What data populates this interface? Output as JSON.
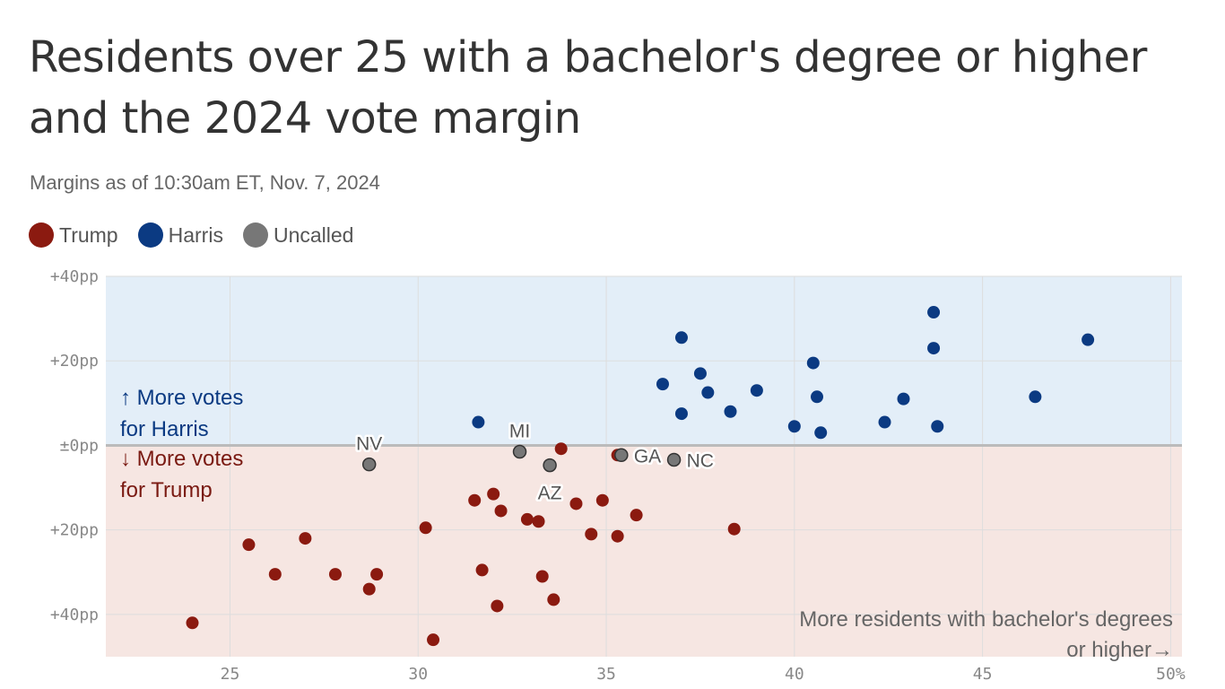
{
  "title": "Residents over 25 with a bachelor's degree or higher and the 2024 vote margin",
  "subtitle": "Margins as of 10:30am ET, Nov. 7, 2024",
  "legend": [
    {
      "label": "Trump",
      "color": "#8b1a10"
    },
    {
      "label": "Harris",
      "color": "#0b3a82"
    },
    {
      "label": "Uncalled",
      "color": "#777777"
    }
  ],
  "chart_data": {
    "type": "scatter",
    "xlabel": "More residents with bachelor's degrees or higher→",
    "xlim": [
      21.7,
      50.3
    ],
    "ylim": [
      -50,
      40
    ],
    "x_ticks": [
      25,
      30,
      35,
      40,
      45,
      50
    ],
    "x_tick_labels": [
      "25",
      "30",
      "35",
      "40",
      "45",
      "50%"
    ],
    "y_ticks": [
      40,
      20,
      0,
      -20,
      -40
    ],
    "y_tick_labels": [
      "+40pp",
      "+20pp",
      "±0pp",
      "+20pp",
      "+40pp"
    ],
    "annotation_harris": [
      "↑ More votes",
      "for Harris"
    ],
    "annotation_trump": [
      "↓ More votes",
      "for Trump"
    ],
    "x_annotation": [
      "More residents with bachelor's degrees",
      "or higher→"
    ],
    "background_colors": {
      "harris_region": "#e3eef8",
      "trump_region": "#f6e6e2",
      "zero_line": "#bbbbbb",
      "grid": "#dddddd"
    },
    "series": [
      {
        "name": "Trump",
        "color": "#8b1a10",
        "points": [
          [
            24.0,
            -42
          ],
          [
            25.5,
            -23.5
          ],
          [
            26.2,
            -30.5
          ],
          [
            27.0,
            -22
          ],
          [
            27.8,
            -30.5
          ],
          [
            28.7,
            -34
          ],
          [
            28.9,
            -30.5
          ],
          [
            30.2,
            -19.5
          ],
          [
            30.4,
            -46
          ],
          [
            31.5,
            -13
          ],
          [
            31.7,
            -29.5
          ],
          [
            32.0,
            -11.5
          ],
          [
            32.1,
            -38
          ],
          [
            32.2,
            -15.5
          ],
          [
            32.9,
            -17.5
          ],
          [
            33.2,
            -18
          ],
          [
            33.3,
            -31
          ],
          [
            33.6,
            -36.5
          ],
          [
            33.8,
            -0.8
          ],
          [
            34.2,
            -13.8
          ],
          [
            34.6,
            -21
          ],
          [
            34.9,
            -13
          ],
          [
            35.3,
            -21.5
          ],
          [
            35.3,
            -2.3
          ],
          [
            35.8,
            -16.5
          ],
          [
            38.4,
            -19.8
          ]
        ]
      },
      {
        "name": "Harris",
        "color": "#0b3a82",
        "points": [
          [
            31.6,
            5.5
          ],
          [
            36.5,
            14.5
          ],
          [
            37.0,
            25.5
          ],
          [
            37.0,
            7.5
          ],
          [
            37.5,
            17
          ],
          [
            37.7,
            12.5
          ],
          [
            38.3,
            8
          ],
          [
            39.0,
            13
          ],
          [
            40.0,
            4.5
          ],
          [
            40.5,
            19.5
          ],
          [
            40.6,
            11.5
          ],
          [
            40.7,
            3
          ],
          [
            42.4,
            5.5
          ],
          [
            42.9,
            11
          ],
          [
            43.7,
            31.5
          ],
          [
            43.7,
            23
          ],
          [
            43.8,
            4.5
          ],
          [
            46.4,
            11.5
          ],
          [
            47.8,
            25
          ]
        ]
      },
      {
        "name": "Uncalled",
        "color": "#777777",
        "points": [
          [
            28.7,
            -4.5
          ],
          [
            32.7,
            -1.5
          ],
          [
            33.5,
            -4.7
          ],
          [
            35.4,
            -2.3
          ],
          [
            36.8,
            -3.4
          ]
        ]
      }
    ],
    "labeled_states": [
      {
        "label": "NV",
        "x": 28.7,
        "y": -4.5,
        "side": "above"
      },
      {
        "label": "MI",
        "x": 32.7,
        "y": -1.5,
        "side": "above"
      },
      {
        "label": "AZ",
        "x": 33.5,
        "y": -4.7,
        "side": "below"
      },
      {
        "label": "GA",
        "x": 35.4,
        "y": -2.3,
        "side": "right"
      },
      {
        "label": "NC",
        "x": 36.8,
        "y": -3.4,
        "side": "right"
      }
    ]
  }
}
